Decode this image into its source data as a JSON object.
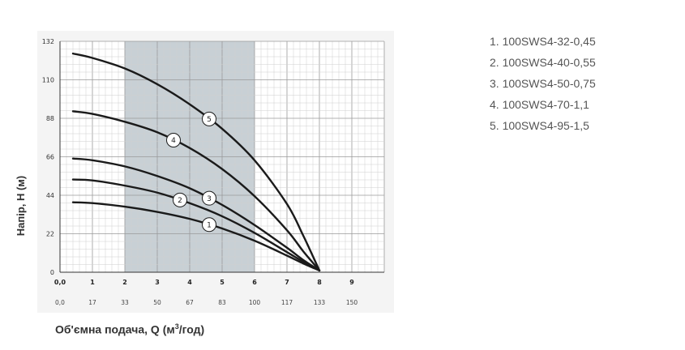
{
  "chart_data": {
    "type": "line",
    "title": "",
    "ylabel": "Напір, Н (м)",
    "xlabel_prefix": "Об'ємна подача, Q (м",
    "xlabel_sup": "3",
    "xlabel_suffix": "/год)",
    "xlim": [
      0,
      10
    ],
    "ylim": [
      0,
      132
    ],
    "y_ticks": [
      "0",
      "22",
      "44",
      "66",
      "88",
      "110",
      "132"
    ],
    "y_tick_values": [
      0,
      22,
      44,
      66,
      88,
      110,
      132
    ],
    "x_ticks": [
      "0,0",
      "1",
      "2",
      "3",
      "4",
      "5",
      "6",
      "7",
      "8",
      "9"
    ],
    "x_tick_values": [
      0,
      1,
      2,
      3,
      4,
      5,
      6,
      7,
      8,
      9
    ],
    "x2_ticks": [
      "0,0",
      "17",
      "33",
      "50",
      "67",
      "83",
      "100",
      "117",
      "133",
      "150"
    ],
    "x2_tick_values": [
      0,
      1,
      2,
      3,
      4,
      5,
      6,
      7,
      8,
      9
    ],
    "grid": true,
    "shaded_range": [
      2,
      6
    ],
    "legend_position": "right",
    "series": [
      {
        "name": "1. 100SWS4-32-0,45",
        "marker": "1",
        "marker_x": 4.6,
        "x": [
          0.4,
          1,
          2,
          3,
          4,
          5,
          6,
          7,
          7.5,
          8
        ],
        "y": [
          40,
          39.5,
          37.5,
          34.5,
          30.5,
          25,
          18,
          9.5,
          5,
          1
        ]
      },
      {
        "name": "2. 100SWS4-40-0,55",
        "marker": "2",
        "marker_x": 3.7,
        "x": [
          0.4,
          1,
          2,
          3,
          4,
          5,
          6,
          7,
          7.5,
          8
        ],
        "y": [
          53,
          52.5,
          49.5,
          45.5,
          39.5,
          32,
          22.5,
          11.5,
          6,
          1
        ]
      },
      {
        "name": "3. 100SWS4-50-0,75",
        "marker": "3",
        "marker_x": 4.6,
        "x": [
          0.4,
          1,
          2,
          3,
          4,
          5,
          6,
          7,
          7.5,
          8
        ],
        "y": [
          65,
          64,
          60.5,
          55,
          48,
          38.5,
          27,
          14,
          7,
          1
        ]
      },
      {
        "name": "4. 100SWS4-70-1,1",
        "marker": "4",
        "marker_x": 3.5,
        "x": [
          0.4,
          1,
          2,
          3,
          4,
          5,
          6,
          7,
          7.5,
          8
        ],
        "y": [
          92,
          90.5,
          86,
          80,
          71,
          59,
          43.5,
          24,
          12,
          1
        ]
      },
      {
        "name": "5. 100SWS4-95-1,5",
        "marker": "5",
        "marker_x": 4.6,
        "x": [
          0.4,
          1,
          2,
          3,
          4,
          5,
          6,
          7,
          7.5,
          8
        ],
        "y": [
          125,
          122.5,
          116.5,
          107.5,
          96,
          82,
          64,
          39,
          21,
          1
        ]
      }
    ]
  }
}
